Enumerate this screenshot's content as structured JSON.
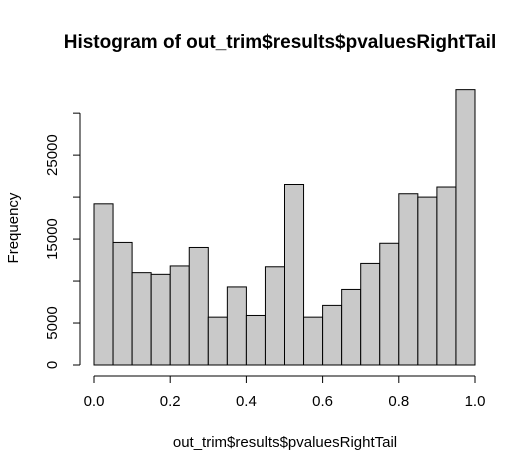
{
  "chart_data": {
    "type": "bar",
    "title": "Histogram of out_trim$results$pvaluesRightTail",
    "xlabel": "out_trim$results$pvaluesRightTail",
    "ylabel": "Frequency",
    "bin_edges": [
      0.0,
      0.05,
      0.1,
      0.15,
      0.2,
      0.25,
      0.3,
      0.35,
      0.4,
      0.45,
      0.5,
      0.55,
      0.6,
      0.65,
      0.7,
      0.75,
      0.8,
      0.85,
      0.9,
      0.95,
      1.0
    ],
    "values": [
      19200,
      14600,
      11000,
      10800,
      11800,
      14000,
      5700,
      9300,
      5900,
      11700,
      21500,
      5700,
      7100,
      9000,
      12100,
      14500,
      20400,
      20000,
      21200,
      32800
    ],
    "xlim": [
      0,
      1
    ],
    "ylim": [
      0,
      33000
    ],
    "x_ticks": [
      0.0,
      0.2,
      0.4,
      0.6,
      0.8,
      1.0
    ],
    "x_tick_labels": [
      "0.0",
      "0.2",
      "0.4",
      "0.6",
      "0.8",
      "1.0"
    ],
    "y_ticks": [
      0,
      5000,
      15000,
      25000
    ],
    "y_tick_labels": [
      "0",
      "5000",
      "15000",
      "25000"
    ],
    "y_minor_ticks": [
      10000,
      20000,
      30000
    ],
    "bar_color": "#c9c9c9",
    "grid": false
  }
}
